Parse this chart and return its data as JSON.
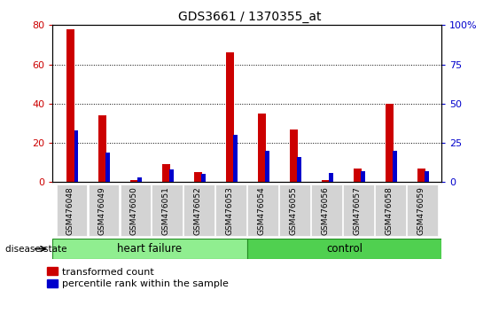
{
  "title": "GDS3661 / 1370355_at",
  "samples": [
    "GSM476048",
    "GSM476049",
    "GSM476050",
    "GSM476051",
    "GSM476052",
    "GSM476053",
    "GSM476054",
    "GSM476055",
    "GSM476056",
    "GSM476057",
    "GSM476058",
    "GSM476059"
  ],
  "transformed_count": [
    78,
    34,
    1,
    9,
    5,
    66,
    35,
    27,
    1,
    7,
    40,
    7
  ],
  "percentile_rank": [
    33,
    19,
    3,
    8,
    5,
    30,
    20,
    16,
    6,
    7,
    20,
    7
  ],
  "groups": [
    {
      "label": "heart failure",
      "start": 0,
      "end": 6,
      "color": "#90EE90"
    },
    {
      "label": "control",
      "start": 6,
      "end": 12,
      "color": "#50D050"
    }
  ],
  "red_color": "#CC0000",
  "blue_color": "#0000CC",
  "left_ylim": [
    0,
    80
  ],
  "right_ylim": [
    0,
    100
  ],
  "left_yticks": [
    0,
    20,
    40,
    60,
    80
  ],
  "right_yticks": [
    0,
    25,
    50,
    75,
    100
  ],
  "right_yticklabels": [
    "0",
    "25",
    "50",
    "75",
    "100%"
  ],
  "grid_yticks": [
    20,
    40,
    60
  ],
  "plot_area_color": "#FFFFFF",
  "xtick_bg_color": "#D3D3D3",
  "disease_label": "disease state",
  "legend_items": [
    "transformed count",
    "percentile rank within the sample"
  ],
  "fig_bg": "#FFFFFF",
  "red_bar_width": 0.25,
  "blue_bar_width": 0.12
}
